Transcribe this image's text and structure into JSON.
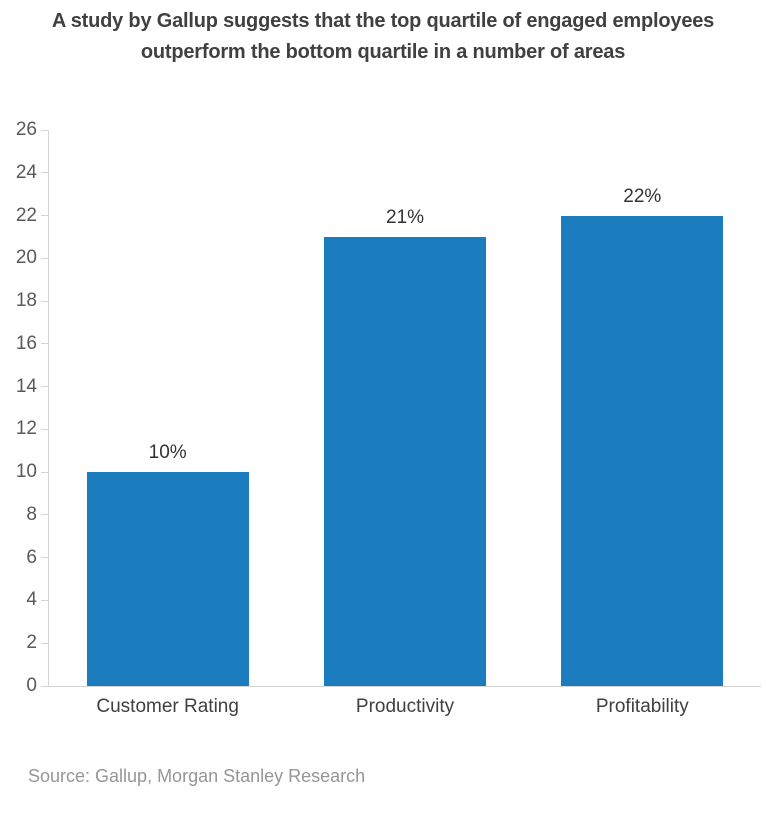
{
  "title": {
    "line1": "A study by Gallup suggests that the top quartile of engaged employees",
    "line2": "outperform the bottom quartile in a number of areas"
  },
  "source": "Source: Gallup, Morgan Stanley Research",
  "colors": {
    "bar": "#1b7cbe",
    "title_text": "#404040",
    "axis_line": "#d4d4d4",
    "tick_text": "#595959",
    "category_text": "#404040",
    "value_label_text": "#333333",
    "source_text": "#969696",
    "background": "#ffffff"
  },
  "chart_data": {
    "type": "bar",
    "title": "A study by Gallup suggests that the top quartile of engaged employees outperform the bottom quartile in a number of areas",
    "categories": [
      "Customer Rating",
      "Productivity",
      "Profitability"
    ],
    "values": [
      10,
      21,
      22
    ],
    "value_labels": [
      "10%",
      "21%",
      "22%"
    ],
    "xlabel": "",
    "ylabel": "",
    "ylim": [
      0,
      26
    ],
    "yticks": [
      0,
      2,
      4,
      6,
      8,
      10,
      12,
      14,
      16,
      18,
      20,
      22,
      24,
      26
    ],
    "grid": false,
    "legend": "none",
    "bar_color": "#1b7cbe"
  }
}
